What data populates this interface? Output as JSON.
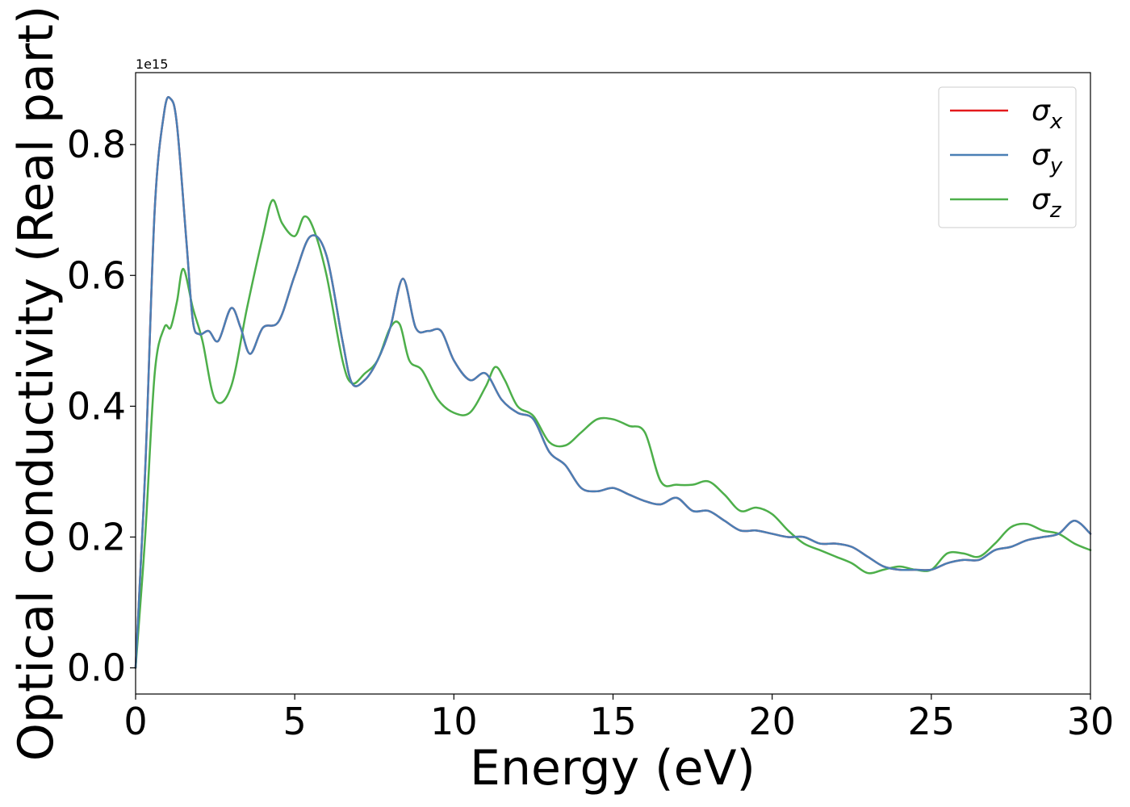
{
  "chart_data": {
    "type": "line",
    "title": "",
    "xlabel": "Energy (eV)",
    "ylabel": "Optical conductivity (Real part)",
    "y_offset_label": "1e15",
    "xlim": [
      0,
      30
    ],
    "ylim": [
      -0.04,
      0.91
    ],
    "x_ticks": [
      0,
      5,
      10,
      15,
      20,
      25,
      30
    ],
    "x_tick_labels": [
      "0",
      "5",
      "10",
      "15",
      "20",
      "25",
      "30"
    ],
    "y_ticks": [
      0.0,
      0.2,
      0.4,
      0.6,
      0.8
    ],
    "y_tick_labels": [
      "0.0",
      "0.2",
      "0.4",
      "0.6",
      "0.8"
    ],
    "grid": false,
    "legend_position": "top-right",
    "series": [
      {
        "name": "σ",
        "subscript": "x",
        "color": "#e41a1c",
        "x": [
          0,
          0.3,
          0.6,
          0.9,
          1.1,
          1.3,
          1.6,
          1.8,
          2.0,
          2.3,
          2.6,
          3.0,
          3.3,
          3.6,
          4.0,
          4.5,
          5.0,
          5.5,
          6.0,
          6.5,
          6.8,
          7.2,
          7.6,
          8.0,
          8.4,
          8.8,
          9.2,
          9.6,
          10.0,
          10.5,
          11.0,
          11.5,
          12.0,
          12.5,
          13.0,
          13.5,
          14.0,
          14.5,
          15.0,
          15.5,
          16.0,
          16.5,
          17.0,
          17.5,
          18.0,
          18.5,
          19.0,
          19.5,
          20.0,
          20.5,
          21.0,
          21.5,
          22.0,
          22.5,
          23.0,
          23.5,
          24.0,
          24.5,
          25.0,
          25.5,
          26.0,
          26.5,
          27.0,
          27.5,
          28.0,
          28.5,
          29.0,
          29.5,
          30.0
        ],
        "values": [
          0.0,
          0.3,
          0.7,
          0.85,
          0.87,
          0.83,
          0.65,
          0.53,
          0.51,
          0.515,
          0.5,
          0.55,
          0.52,
          0.48,
          0.52,
          0.53,
          0.6,
          0.66,
          0.63,
          0.5,
          0.435,
          0.44,
          0.47,
          0.52,
          0.595,
          0.52,
          0.515,
          0.515,
          0.47,
          0.44,
          0.45,
          0.41,
          0.39,
          0.38,
          0.33,
          0.31,
          0.275,
          0.27,
          0.275,
          0.265,
          0.255,
          0.25,
          0.26,
          0.24,
          0.24,
          0.225,
          0.21,
          0.21,
          0.205,
          0.2,
          0.2,
          0.19,
          0.19,
          0.185,
          0.17,
          0.155,
          0.15,
          0.15,
          0.15,
          0.16,
          0.165,
          0.165,
          0.18,
          0.185,
          0.195,
          0.2,
          0.205,
          0.225,
          0.205
        ]
      },
      {
        "name": "σ",
        "subscript": "y",
        "color": "#4a7fb5",
        "x": [
          0,
          0.3,
          0.6,
          0.9,
          1.1,
          1.3,
          1.6,
          1.8,
          2.0,
          2.3,
          2.6,
          3.0,
          3.3,
          3.6,
          4.0,
          4.5,
          5.0,
          5.5,
          6.0,
          6.5,
          6.8,
          7.2,
          7.6,
          8.0,
          8.4,
          8.8,
          9.2,
          9.6,
          10.0,
          10.5,
          11.0,
          11.5,
          12.0,
          12.5,
          13.0,
          13.5,
          14.0,
          14.5,
          15.0,
          15.5,
          16.0,
          16.5,
          17.0,
          17.5,
          18.0,
          18.5,
          19.0,
          19.5,
          20.0,
          20.5,
          21.0,
          21.5,
          22.0,
          22.5,
          23.0,
          23.5,
          24.0,
          24.5,
          25.0,
          25.5,
          26.0,
          26.5,
          27.0,
          27.5,
          28.0,
          28.5,
          29.0,
          29.5,
          30.0
        ],
        "values": [
          0.0,
          0.3,
          0.7,
          0.85,
          0.87,
          0.83,
          0.65,
          0.53,
          0.51,
          0.515,
          0.5,
          0.55,
          0.52,
          0.48,
          0.52,
          0.53,
          0.6,
          0.66,
          0.63,
          0.5,
          0.435,
          0.44,
          0.47,
          0.52,
          0.595,
          0.52,
          0.515,
          0.515,
          0.47,
          0.44,
          0.45,
          0.41,
          0.39,
          0.38,
          0.33,
          0.31,
          0.275,
          0.27,
          0.275,
          0.265,
          0.255,
          0.25,
          0.26,
          0.24,
          0.24,
          0.225,
          0.21,
          0.21,
          0.205,
          0.2,
          0.2,
          0.19,
          0.19,
          0.185,
          0.17,
          0.155,
          0.15,
          0.15,
          0.15,
          0.16,
          0.165,
          0.165,
          0.18,
          0.185,
          0.195,
          0.2,
          0.205,
          0.225,
          0.205
        ]
      },
      {
        "name": "σ",
        "subscript": "z",
        "color": "#4daf4a",
        "x": [
          0,
          0.3,
          0.6,
          0.9,
          1.1,
          1.3,
          1.5,
          1.8,
          2.1,
          2.5,
          3.0,
          3.5,
          4.0,
          4.3,
          4.6,
          5.0,
          5.3,
          5.6,
          6.0,
          6.5,
          6.8,
          7.2,
          7.6,
          8.0,
          8.3,
          8.6,
          9.0,
          9.5,
          10.0,
          10.5,
          11.0,
          11.3,
          11.6,
          12.0,
          12.5,
          13.0,
          13.5,
          14.0,
          14.5,
          15.0,
          15.5,
          16.0,
          16.5,
          17.0,
          17.5,
          18.0,
          18.5,
          19.0,
          19.5,
          20.0,
          20.5,
          21.0,
          21.5,
          22.0,
          22.5,
          23.0,
          23.5,
          24.0,
          24.5,
          25.0,
          25.5,
          26.0,
          26.5,
          27.0,
          27.5,
          28.0,
          28.5,
          29.0,
          29.5,
          30.0
        ],
        "values": [
          0.0,
          0.2,
          0.45,
          0.52,
          0.52,
          0.56,
          0.61,
          0.55,
          0.5,
          0.41,
          0.43,
          0.55,
          0.66,
          0.715,
          0.68,
          0.66,
          0.69,
          0.67,
          0.6,
          0.47,
          0.435,
          0.45,
          0.47,
          0.52,
          0.525,
          0.47,
          0.455,
          0.41,
          0.39,
          0.39,
          0.43,
          0.46,
          0.44,
          0.4,
          0.385,
          0.345,
          0.34,
          0.36,
          0.38,
          0.38,
          0.37,
          0.36,
          0.285,
          0.28,
          0.28,
          0.285,
          0.265,
          0.24,
          0.245,
          0.235,
          0.21,
          0.19,
          0.18,
          0.17,
          0.16,
          0.145,
          0.15,
          0.155,
          0.15,
          0.15,
          0.175,
          0.175,
          0.17,
          0.19,
          0.215,
          0.22,
          0.21,
          0.205,
          0.19,
          0.18
        ]
      }
    ]
  }
}
